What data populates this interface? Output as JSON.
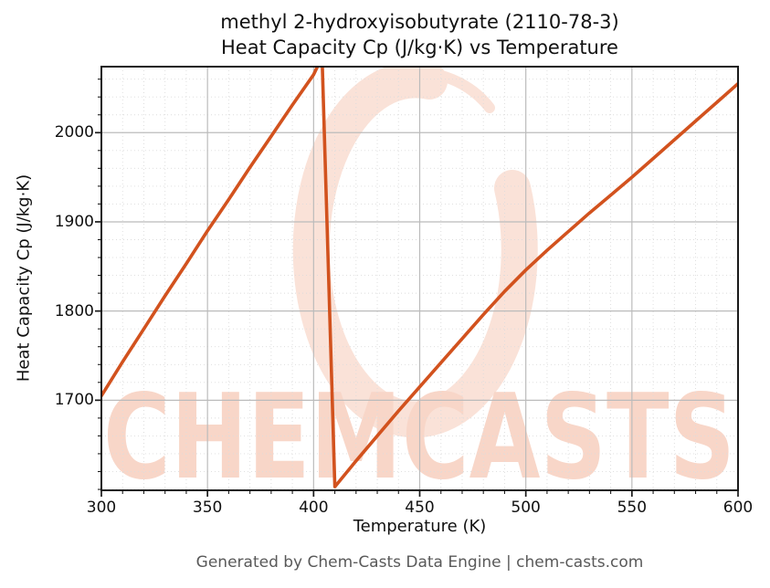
{
  "title": {
    "line1": "methyl 2-hydroxyisobutyrate (2110-78-3)",
    "line2": "Heat Capacity Cp (J/kg·K) vs Temperature"
  },
  "axes": {
    "xlabel": "Temperature (K)",
    "ylabel": "Heat Capacity Cp (J/kg·K)"
  },
  "footer": {
    "text": "Generated by Chem-Casts Data Engine | chem-casts.com"
  },
  "watermark": {
    "text": "CHEMCASTS",
    "text_color": "#f8d6c8",
    "swirl_color": "#fae2d8"
  },
  "colors": {
    "line": "#d2521e",
    "grid_major": "#bbbbbb",
    "grid_minor": "#dcdcdc",
    "spine": "#1a1a1a",
    "footer_text": "#595959"
  },
  "chart_data": {
    "type": "line",
    "title": "methyl 2-hydroxyisobutyrate (2110-78-3) Heat Capacity Cp (J/kg·K) vs Temperature",
    "xlabel": "Temperature (K)",
    "ylabel": "Heat Capacity Cp (J/kg·K)",
    "xlim": [
      300,
      600
    ],
    "ylim": [
      1599,
      2074
    ],
    "x_major_ticks": [
      300,
      350,
      400,
      450,
      500,
      550,
      600
    ],
    "y_major_ticks": [
      1700,
      1800,
      1900,
      2000
    ],
    "x_minor_tick_step": 10,
    "y_minor_tick_step": 20,
    "grid": "major solid + minor dotted",
    "legend": "none",
    "series": [
      {
        "name": "Heat Capacity Cp (J/kg·K)",
        "color": "#d2521e",
        "points": [
          [
            300,
            1705
          ],
          [
            310,
            1743
          ],
          [
            320,
            1780
          ],
          [
            330,
            1817
          ],
          [
            340,
            1853
          ],
          [
            350,
            1890
          ],
          [
            360,
            1925
          ],
          [
            370,
            1961
          ],
          [
            380,
            1996
          ],
          [
            390,
            2031
          ],
          [
            400,
            2065
          ],
          [
            404,
            2085
          ],
          [
            410,
            1603
          ],
          [
            420,
            1632
          ],
          [
            430,
            1660
          ],
          [
            440,
            1688
          ],
          [
            450,
            1715
          ],
          [
            460,
            1742
          ],
          [
            470,
            1769
          ],
          [
            480,
            1796
          ],
          [
            490,
            1822
          ],
          [
            500,
            1846
          ],
          [
            510,
            1868
          ],
          [
            520,
            1889
          ],
          [
            530,
            1910
          ],
          [
            540,
            1930
          ],
          [
            550,
            1950
          ],
          [
            560,
            1971
          ],
          [
            570,
            1992
          ],
          [
            580,
            2013
          ],
          [
            590,
            2034
          ],
          [
            600,
            2055
          ]
        ]
      }
    ],
    "notes": "Peak near 404 K is clipped at the top axis edge; sharp drop from ~404 K to a minimum at ~410 K, then rising again to 600 K."
  }
}
